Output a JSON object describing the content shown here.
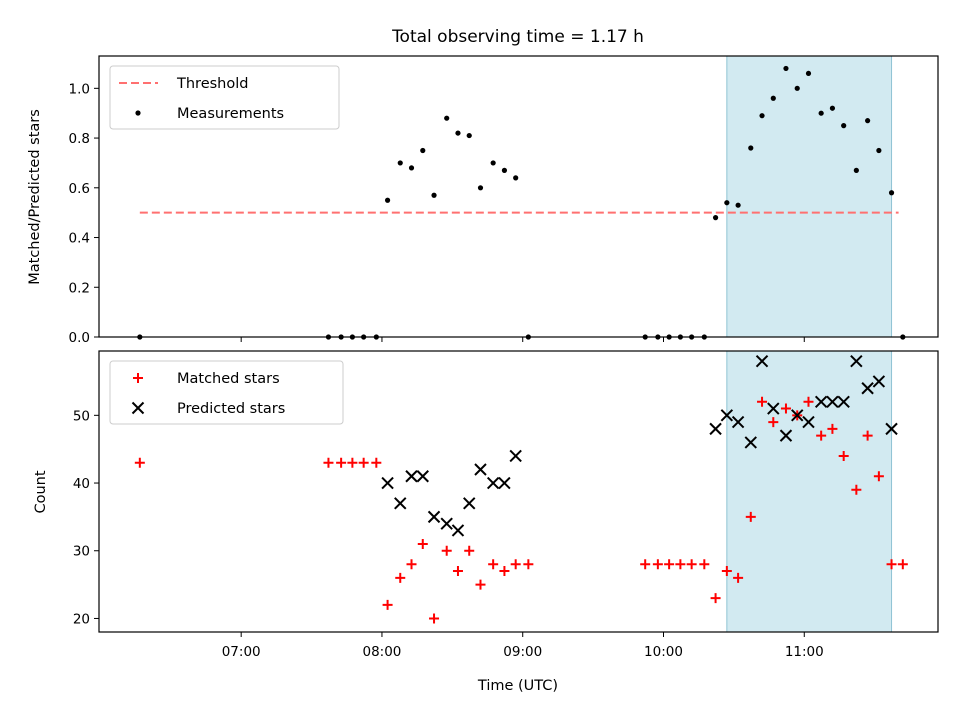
{
  "chart_data": [
    {
      "type": "scatter",
      "title": "Total observing time = 1.17 h",
      "xlabel": "",
      "ylabel": "Matched/Predicted stars",
      "x_unit": "hours UTC",
      "xlim": [
        5.99,
        11.95
      ],
      "ylim": [
        0,
        1.13
      ],
      "yticks": [
        0.0,
        0.2,
        0.4,
        0.6,
        0.8,
        1.0
      ],
      "ytick_labels": [
        "0.0",
        "0.2",
        "0.4",
        "0.6",
        "0.8",
        "1.0"
      ],
      "shaded_interval": [
        10.45,
        11.62
      ],
      "shade_color": "#add8e6",
      "legend": {
        "placement": "upper left",
        "entries": [
          "Threshold",
          "Measurements"
        ]
      },
      "series": [
        {
          "name": "Threshold",
          "kind": "dashed-line",
          "color": "#ff7070",
          "x": [
            6.28,
            11.67
          ],
          "y": [
            0.5,
            0.5
          ]
        },
        {
          "name": "Measurements",
          "kind": "dot",
          "color": "#000000",
          "x": [
            6.28,
            7.62,
            7.71,
            7.79,
            7.87,
            7.96,
            8.04,
            8.13,
            8.21,
            8.29,
            8.37,
            8.46,
            8.54,
            8.62,
            8.7,
            8.79,
            8.87,
            8.95,
            9.04,
            9.87,
            9.96,
            10.04,
            10.12,
            10.2,
            10.29,
            10.37,
            10.45,
            10.53,
            10.62,
            10.7,
            10.78,
            10.87,
            10.95,
            11.03,
            11.12,
            11.2,
            11.28,
            11.37,
            11.45,
            11.53,
            11.62,
            11.7
          ],
          "y": [
            0.0,
            0.0,
            0.0,
            0.0,
            0.0,
            0.0,
            0.55,
            0.7,
            0.68,
            0.75,
            0.57,
            0.88,
            0.82,
            0.81,
            0.6,
            0.7,
            0.67,
            0.64,
            0.0,
            0.0,
            0.0,
            0.0,
            0.0,
            0.0,
            0.0,
            0.48,
            0.54,
            0.53,
            0.76,
            0.89,
            0.96,
            1.08,
            1.0,
            1.06,
            0.9,
            0.92,
            0.85,
            0.67,
            0.87,
            0.75,
            0.58,
            0.0
          ]
        }
      ]
    },
    {
      "type": "scatter",
      "title": "",
      "xlabel": "Time (UTC)",
      "ylabel": "Count",
      "x_unit": "hours UTC",
      "xlim": [
        5.99,
        11.95
      ],
      "ylim": [
        18,
        59.5
      ],
      "xticks": [
        7,
        8,
        9,
        10,
        11
      ],
      "xtick_labels": [
        "07:00",
        "08:00",
        "09:00",
        "10:00",
        "11:00"
      ],
      "yticks": [
        20,
        30,
        40,
        50
      ],
      "ytick_labels": [
        "20",
        "30",
        "40",
        "50"
      ],
      "shaded_interval": [
        10.45,
        11.62
      ],
      "shade_color": "#add8e6",
      "legend": {
        "placement": "upper left",
        "entries": [
          "Matched stars",
          "Predicted stars"
        ]
      },
      "series": [
        {
          "name": "Matched stars",
          "kind": "plus",
          "color": "#ff0000",
          "x": [
            6.28,
            7.62,
            7.71,
            7.79,
            7.87,
            7.96,
            8.04,
            8.13,
            8.21,
            8.29,
            8.37,
            8.46,
            8.54,
            8.62,
            8.7,
            8.79,
            8.87,
            8.95,
            9.04,
            9.87,
            9.96,
            10.04,
            10.12,
            10.2,
            10.29,
            10.37,
            10.45,
            10.53,
            10.62,
            10.7,
            10.78,
            10.87,
            10.95,
            11.03,
            11.12,
            11.2,
            11.28,
            11.37,
            11.45,
            11.53,
            11.62,
            11.7
          ],
          "y": [
            43,
            43,
            43,
            43,
            43,
            43,
            22,
            26,
            28,
            31,
            20,
            30,
            27,
            30,
            25,
            28,
            27,
            28,
            28,
            28,
            28,
            28,
            28,
            28,
            28,
            23,
            27,
            26,
            35,
            52,
            49,
            51,
            50,
            52,
            47,
            48,
            44,
            39,
            47,
            41,
            28,
            28
          ]
        },
        {
          "name": "Predicted stars",
          "kind": "x",
          "color": "#000000",
          "x": [
            8.04,
            8.13,
            8.21,
            8.29,
            8.37,
            8.46,
            8.54,
            8.62,
            8.7,
            8.79,
            8.87,
            8.95,
            10.37,
            10.45,
            10.53,
            10.62,
            10.7,
            10.78,
            10.87,
            10.95,
            11.03,
            11.12,
            11.2,
            11.28,
            11.37,
            11.45,
            11.53,
            11.62
          ],
          "y": [
            40,
            37,
            41,
            41,
            35,
            34,
            33,
            37,
            42,
            40,
            40,
            44,
            48,
            50,
            49,
            46,
            58,
            51,
            47,
            50,
            49,
            52,
            52,
            52,
            58,
            54,
            55,
            48
          ]
        }
      ]
    }
  ]
}
